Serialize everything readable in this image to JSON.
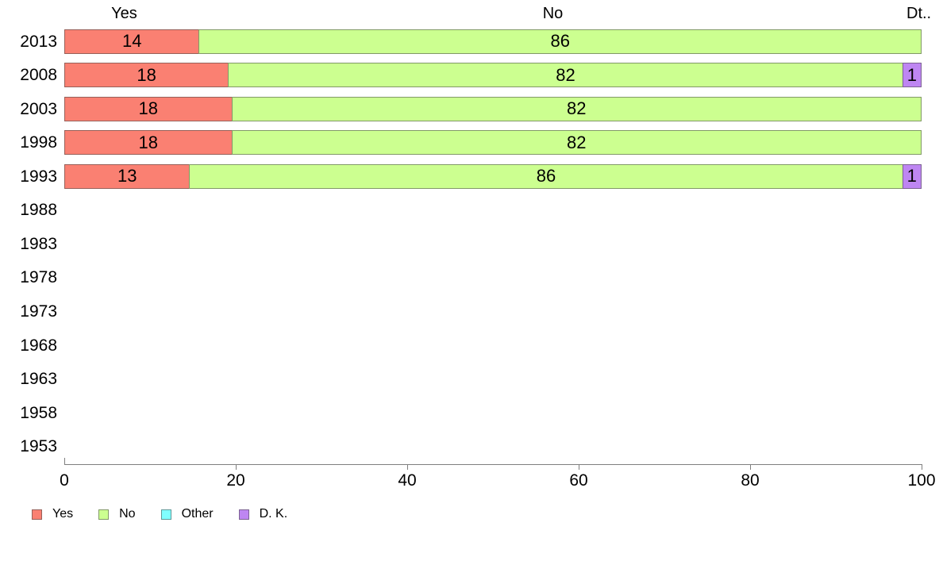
{
  "chart_data": {
    "type": "bar",
    "orientation": "horizontal",
    "stacked": true,
    "title": "",
    "xlabel": "",
    "ylabel": "",
    "xlim": [
      0,
      100
    ],
    "x_ticks": [
      0,
      20,
      40,
      60,
      80,
      100
    ],
    "grid": false,
    "categories": [
      "2013",
      "2008",
      "2003",
      "1998",
      "1993",
      "1988",
      "1983",
      "1978",
      "1973",
      "1968",
      "1963",
      "1958",
      "1953"
    ],
    "series": [
      {
        "name": "Yes",
        "values": [
          14,
          18,
          18,
          18,
          13,
          null,
          null,
          null,
          null,
          null,
          null,
          null,
          null
        ]
      },
      {
        "name": "No",
        "values": [
          86,
          82,
          82,
          82,
          86,
          null,
          null,
          null,
          null,
          null,
          null,
          null,
          null
        ]
      },
      {
        "name": "Other",
        "values": [
          0,
          0,
          0,
          0,
          0,
          null,
          null,
          null,
          null,
          null,
          null,
          null,
          null
        ]
      },
      {
        "name": "D. K.",
        "values": [
          0,
          1,
          0,
          0,
          1,
          null,
          null,
          null,
          null,
          null,
          null,
          null,
          null
        ]
      }
    ],
    "colors": {
      "Yes": "#FA8072",
      "No": "#CCFF90",
      "Other": "#80FFFF",
      "D. K.": "#BE86F2"
    },
    "legend": {
      "position": "bottom",
      "entries": [
        "Yes",
        "No",
        "Other",
        "D. K."
      ]
    },
    "segment_labels_shown": true
  },
  "column_headers": {
    "yes": "Yes",
    "no": "No",
    "truncated": "Dt.."
  }
}
